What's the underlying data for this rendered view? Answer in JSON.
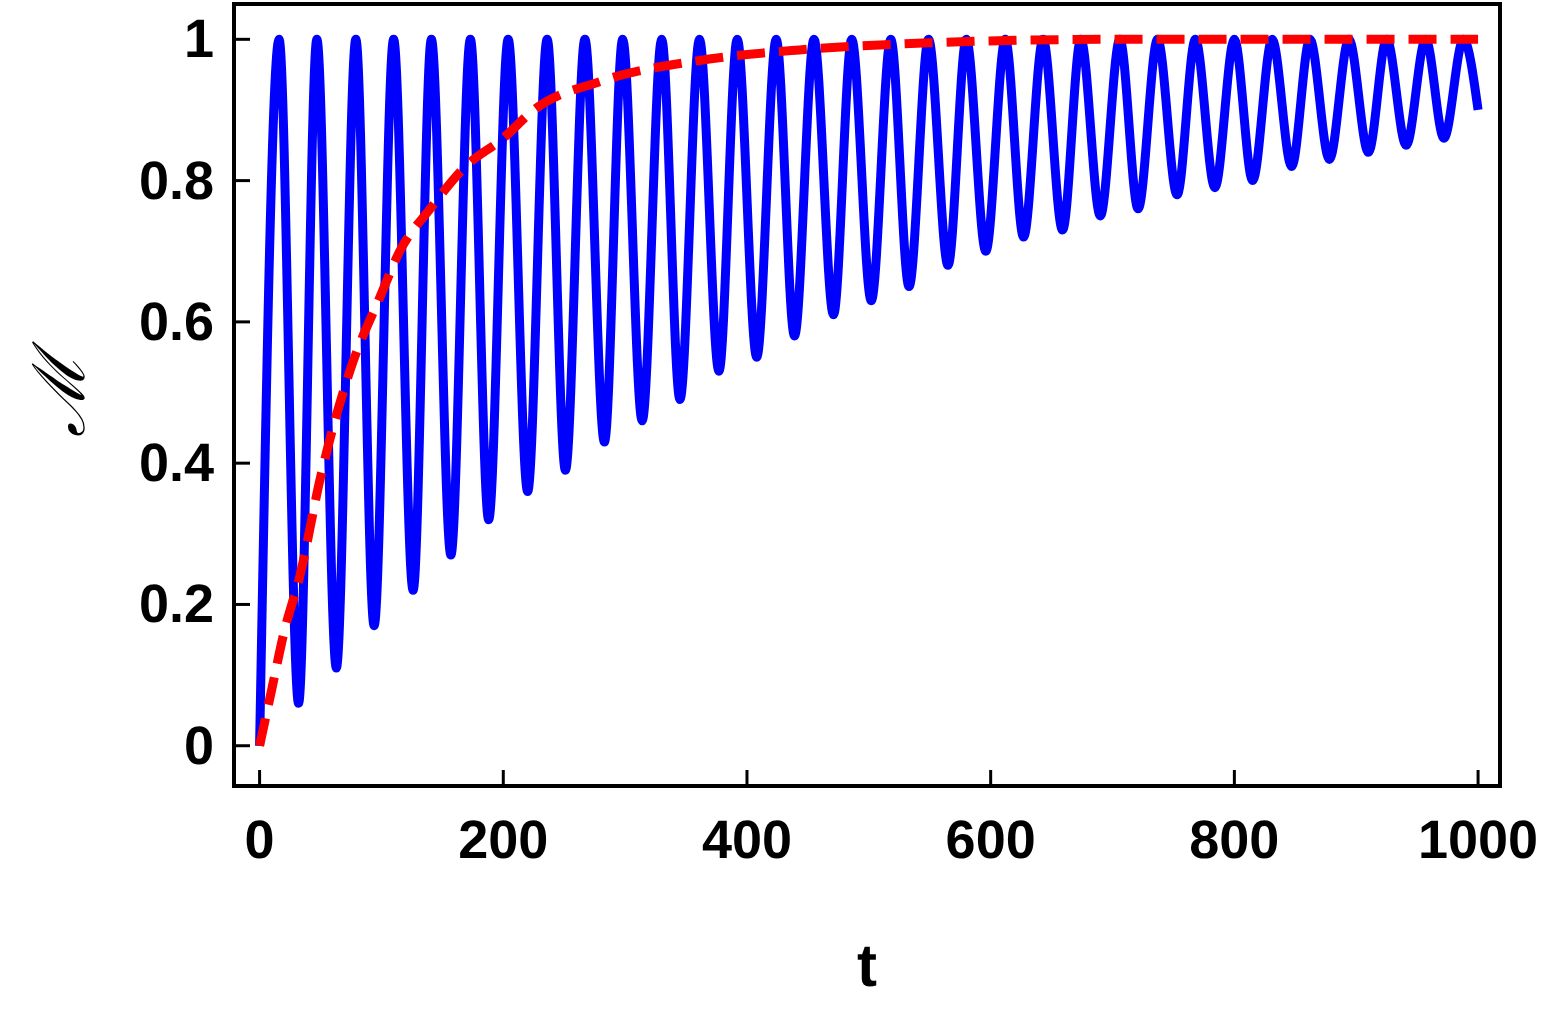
{
  "chart_data": {
    "type": "line",
    "xlabel": "t",
    "ylabel": "ℳ",
    "xlim": [
      -21,
      1018
    ],
    "ylim": [
      -0.057,
      1.05
    ],
    "xticks": [
      0,
      200,
      400,
      600,
      800,
      1000
    ],
    "yticks": [
      0,
      0.2,
      0.4,
      0.6,
      0.8,
      1
    ],
    "marker": "none",
    "series": [
      {
        "color": "#0000ff",
        "line_style": "solid",
        "x": [
          0,
          16,
          32,
          47,
          63,
          79,
          94,
          110,
          126,
          141,
          157,
          173,
          188,
          204,
          220,
          236,
          251,
          267,
          283,
          298,
          314,
          330,
          345,
          361,
          377,
          392,
          408,
          424,
          439,
          455,
          471,
          486,
          502,
          518,
          533,
          549,
          565,
          580,
          596,
          612,
          627,
          643,
          659,
          674,
          690,
          706,
          721,
          737,
          753,
          768,
          784,
          800,
          815,
          831,
          847,
          862,
          878,
          894,
          910,
          925,
          941,
          957,
          972,
          988,
          1000
        ],
        "values": [
          0,
          1,
          0.06,
          1,
          0.11,
          1,
          0.17,
          1,
          0.22,
          1,
          0.27,
          1,
          0.32,
          1,
          0.36,
          1,
          0.39,
          1,
          0.43,
          1,
          0.46,
          1,
          0.49,
          1,
          0.53,
          1,
          0.55,
          1,
          0.58,
          1,
          0.61,
          1,
          0.63,
          1,
          0.65,
          1,
          0.68,
          1,
          0.7,
          1,
          0.72,
          1,
          0.73,
          1,
          0.75,
          1,
          0.76,
          1,
          0.78,
          1,
          0.79,
          1,
          0.8,
          1,
          0.82,
          1,
          0.83,
          1,
          0.84,
          1,
          0.85,
          1,
          0.86,
          1,
          0.9
        ]
      },
      {
        "color": "#ff0000",
        "line_style": "dashed",
        "x": [
          0,
          10,
          20,
          33,
          50,
          74,
          100,
          115,
          140,
          169,
          200,
          225,
          279,
          361,
          443,
          550,
          700,
          1000
        ],
        "values": [
          0,
          0.08,
          0.16,
          0.24,
          0.38,
          0.53,
          0.64,
          0.7,
          0.76,
          0.82,
          0.86,
          0.9,
          0.94,
          0.97,
          0.985,
          0.995,
          1,
          1
        ]
      }
    ]
  }
}
